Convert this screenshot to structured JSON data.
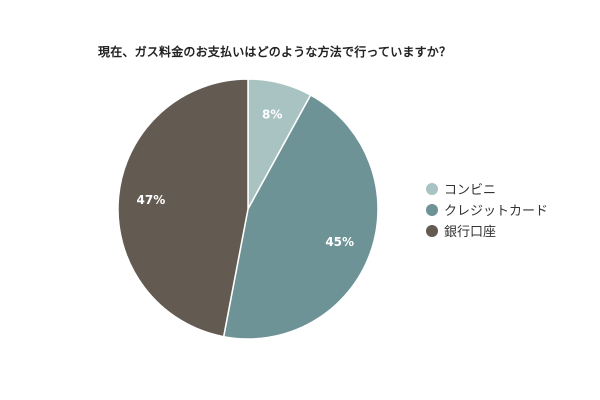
{
  "chart_data": {
    "type": "pie",
    "title": "現在、ガス料金のお支払いはどのような方法で行っていますか？",
    "categories": [
      "コンビニ",
      "クレジットカード",
      "銀行口座"
    ],
    "values": [
      8,
      45,
      47
    ],
    "value_labels": [
      "8%",
      "45%",
      "47%"
    ],
    "colors": [
      "#a8c3c2",
      "#6e9396",
      "#635a51"
    ],
    "legend_position": "right",
    "start_angle": "top",
    "direction": "clockwise"
  }
}
